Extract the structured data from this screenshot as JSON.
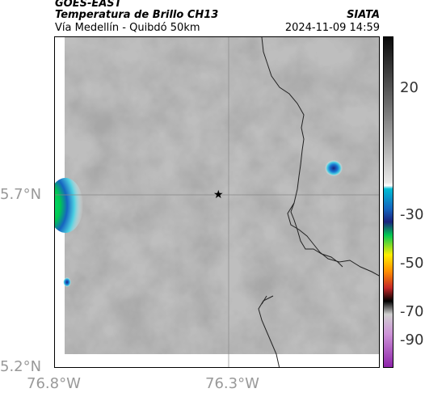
{
  "header": {
    "satellite": "GOES-EAST",
    "product": "Temperatura de Brillo CH13",
    "region": "Vía Medellín - Quibdó 50km",
    "source": "SIATA",
    "datetime": "2024-11-09 14:59"
  },
  "axes": {
    "lat_ticks": [
      "5.7°N",
      "5.2°N"
    ],
    "lon_ticks": [
      "76.8°W",
      "76.3°W"
    ]
  },
  "colorbar": {
    "ticks": [
      "20",
      "-30",
      "-50",
      "-70",
      "-90"
    ],
    "colors": [
      "#111111",
      "#ffffff",
      "#00bcd4",
      "#1a237e",
      "#00e676",
      "#ffee00",
      "#ff6d00",
      "#c62828",
      "#000000",
      "#ce93d8",
      "#8e24aa"
    ]
  },
  "map": {
    "marker": "star",
    "background_gray": "#9a9a9a"
  }
}
